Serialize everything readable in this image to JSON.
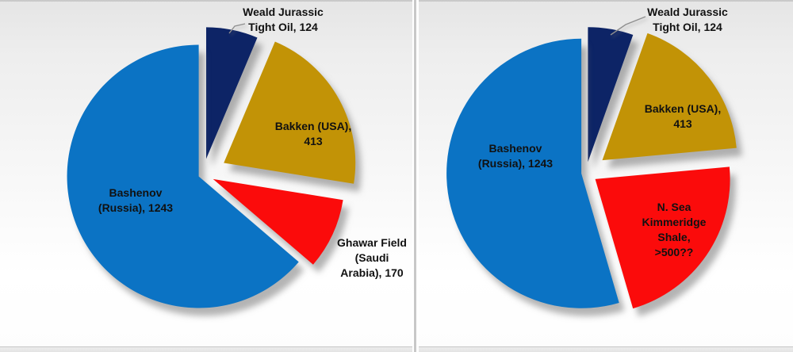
{
  "chart_data": [
    {
      "type": "pie",
      "position": "left",
      "style": "exploded-pie-with-shadow",
      "start_angle_deg": 0,
      "direction": "clockwise",
      "legend": "none",
      "slices": [
        {
          "id": "weald",
          "label": "Weald Jurassic Tight Oil",
          "value": 124,
          "color": "#0d2466",
          "display_label": "Weald Jurassic\nTight Oil, 124",
          "label_placement": "outside-callout"
        },
        {
          "id": "bakken",
          "label": "Bakken (USA)",
          "value": 413,
          "color": "#c29306",
          "display_label": "Bakken (USA),\n413",
          "label_placement": "inside"
        },
        {
          "id": "ghawar",
          "label": "Ghawar Field (Saudi Arabia)",
          "value": 170,
          "color": "#fb0b0b",
          "display_label": "Ghawar Field\n(Saudi\nArabia), 170",
          "label_placement": "outside"
        },
        {
          "id": "bashenov",
          "label": "Bashenov (Russia)",
          "value": 1243,
          "color": "#0b73c4",
          "display_label": "Bashenov\n(Russia), 1243",
          "label_placement": "inside"
        }
      ]
    },
    {
      "type": "pie",
      "position": "right",
      "style": "exploded-pie-with-shadow",
      "start_angle_deg": 0,
      "direction": "clockwise",
      "legend": "none",
      "slices": [
        {
          "id": "weald",
          "label": "Weald Jurassic Tight Oil",
          "value": 124,
          "color": "#0d2466",
          "display_label": "Weald Jurassic\nTight Oil, 124",
          "label_placement": "outside-callout"
        },
        {
          "id": "bakken",
          "label": "Bakken (USA)",
          "value": 413,
          "color": "#c29306",
          "display_label": "Bakken (USA),\n413",
          "label_placement": "inside"
        },
        {
          "id": "nsea",
          "label": "N. Sea Kimmeridge Shale",
          "value": 500,
          "value_text": ">500??",
          "color": "#fb0b0b",
          "display_label": "N. Sea\nKimmeridge\nShale,\n>500??",
          "label_placement": "inside"
        },
        {
          "id": "bashenov",
          "label": "Bashenov (Russia)",
          "value": 1243,
          "color": "#0b73c4",
          "display_label": "Bashenov\n(Russia), 1243",
          "label_placement": "inside"
        }
      ]
    }
  ]
}
